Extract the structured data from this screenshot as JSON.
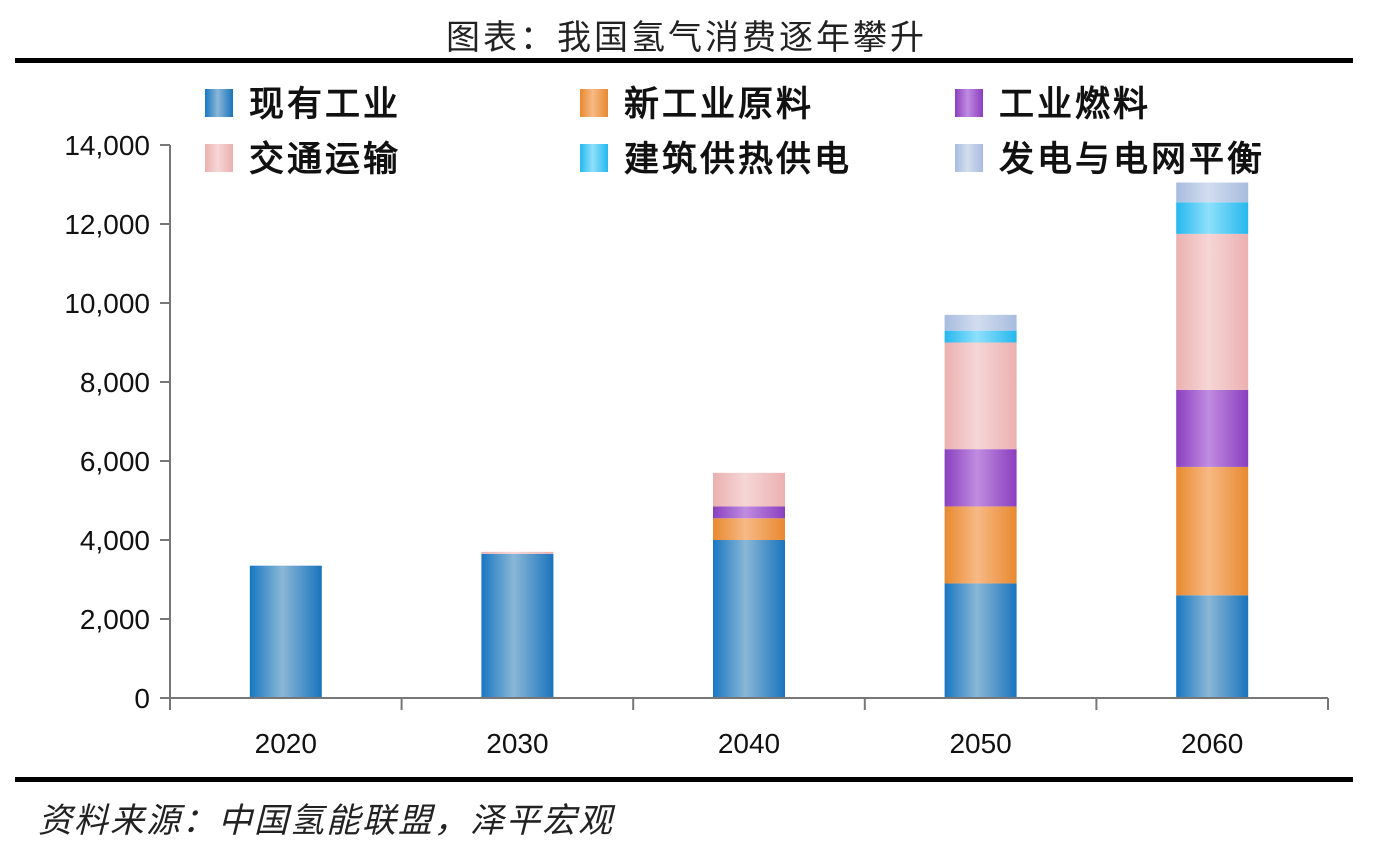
{
  "title": "图表：我国氢气消费逐年攀升",
  "source": "资料来源：中国氢能联盟，泽平宏观",
  "chart_data": {
    "type": "bar",
    "stacked": true,
    "categories": [
      "2020",
      "2030",
      "2040",
      "2050",
      "2060"
    ],
    "ylim": [
      0,
      14000
    ],
    "yticks": [
      0,
      2000,
      4000,
      6000,
      8000,
      10000,
      12000,
      14000
    ],
    "ytick_labels": [
      "0",
      "2,000",
      "4,000",
      "6,000",
      "8,000",
      "10,000",
      "12,000",
      "14,000"
    ],
    "grid": false,
    "legend_position": "top",
    "series": [
      {
        "name": "现有工业",
        "color": "#2f86c8",
        "values": [
          3350,
          3650,
          4000,
          2900,
          2600
        ]
      },
      {
        "name": "新工业原料",
        "color": "#f0a060",
        "values": [
          0,
          0,
          550,
          1950,
          3250
        ]
      },
      {
        "name": "工业燃料",
        "color": "#9b59c8",
        "values": [
          0,
          0,
          300,
          1450,
          1950
        ]
      },
      {
        "name": "交通运输",
        "color": "#eebcbc",
        "values": [
          0,
          50,
          850,
          2700,
          3950
        ]
      },
      {
        "name": "建筑供热供电",
        "color": "#40c4f2",
        "values": [
          0,
          0,
          0,
          300,
          800
        ]
      },
      {
        "name": "发电与电网平衡",
        "color": "#b8c8e4",
        "values": [
          0,
          0,
          0,
          400,
          500
        ]
      }
    ]
  }
}
